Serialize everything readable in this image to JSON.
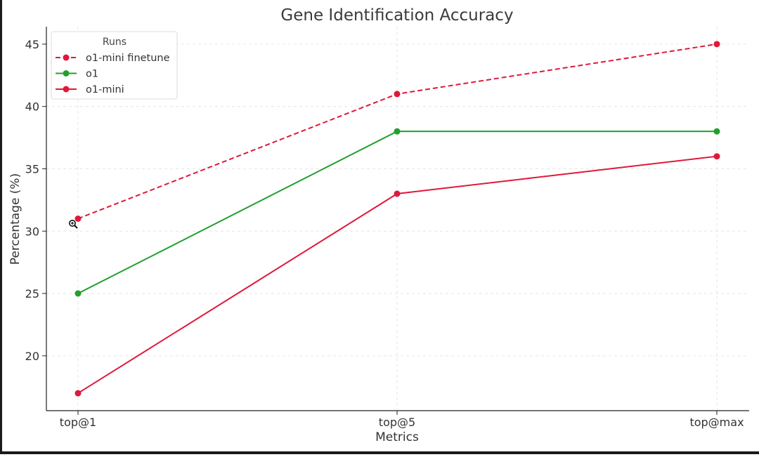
{
  "chart_data": {
    "type": "line",
    "title": "Gene Identification Accuracy",
    "xlabel": "Metrics",
    "ylabel": "Percentage (%)",
    "categories": [
      "top@1",
      "top@5",
      "top@max"
    ],
    "ylim": [
      15.6,
      46.4
    ],
    "yticks": [
      20,
      25,
      30,
      35,
      40,
      45
    ],
    "grid": true,
    "legend": {
      "title": "Runs",
      "placement": "top-left"
    },
    "series": [
      {
        "name": "o1-mini finetune",
        "values": [
          31,
          41,
          45
        ],
        "color": "#e0183a",
        "dashed": true
      },
      {
        "name": "o1",
        "values": [
          25,
          38,
          38
        ],
        "color": "#21a02d",
        "dashed": false
      },
      {
        "name": "o1-mini",
        "values": [
          17,
          33,
          36
        ],
        "color": "#e0183a",
        "dashed": false
      }
    ]
  },
  "icons": {
    "zoom_cursor": "zoom-in-cursor-icon"
  }
}
